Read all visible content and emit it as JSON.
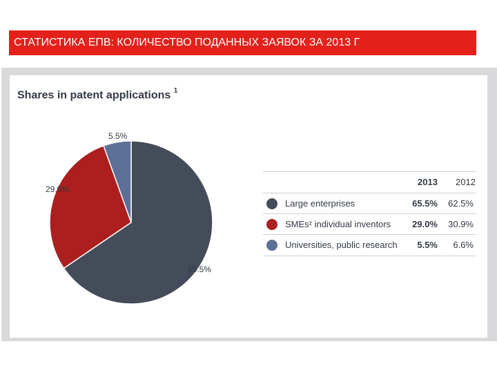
{
  "banner": {
    "text": "СТАТИСТИКА ЕПВ: КОЛИЧЕСТВО ПОДАННЫХ ЗАЯВОК ЗА 2013 Г"
  },
  "chart_data": {
    "type": "pie",
    "title": "Shares in patent applications",
    "title_footnote": "1",
    "slices": [
      {
        "label": "Large enterprises",
        "value": 65.5,
        "display": "65.5%",
        "value_2012": "62.5%",
        "color": "#444c5a"
      },
      {
        "label": "SMEs² individual inventors",
        "value": 29.0,
        "display": "29.0%",
        "value_2012": "30.9%",
        "color": "#ad1f1f"
      },
      {
        "label": "Universities, public research",
        "value": 5.5,
        "display": "5.5%",
        "value_2012": "6.6%",
        "color": "#5c6f95"
      }
    ],
    "slice_labels": [
      "65.5%",
      "29.0%",
      "5.5%"
    ],
    "legend_placement": "right",
    "table": {
      "columns": [
        "2013",
        "2012"
      ],
      "rows": [
        {
          "label": "Large enterprises",
          "v2013": "65.5%",
          "v2012": "62.5%"
        },
        {
          "label": "SMEs² individual inventors",
          "v2013": "29.0%",
          "v2012": "30.9%"
        },
        {
          "label": "Universities, public research",
          "v2013": "5.5%",
          "v2012": "6.6%"
        }
      ]
    }
  }
}
